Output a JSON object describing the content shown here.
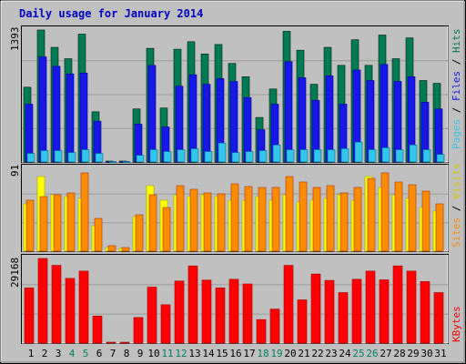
{
  "chart_data": [
    {
      "type": "bar",
      "title": "Daily usage for January 2014",
      "categories": [
        "1",
        "2",
        "3",
        "4",
        "5",
        "6",
        "7",
        "8",
        "9",
        "10",
        "11",
        "12",
        "13",
        "14",
        "15",
        "16",
        "17",
        "18",
        "19",
        "20",
        "21",
        "22",
        "23",
        "24",
        "25",
        "26",
        "27",
        "28",
        "29",
        "30",
        "31"
      ],
      "weekend_days": [
        "4",
        "5",
        "11",
        "12",
        "18",
        "19",
        "25",
        "26"
      ],
      "panel": "top",
      "ymax_label": "1393",
      "ylim": [
        0,
        1393
      ],
      "legend": [
        "Pages",
        "Files",
        "Hits"
      ],
      "series": [
        {
          "name": "Hits",
          "color": "#007a55",
          "values": [
            790,
            1393,
            1210,
            1090,
            1350,
            530,
            10,
            10,
            560,
            1200,
            570,
            1190,
            1270,
            1140,
            1240,
            1040,
            900,
            470,
            770,
            1380,
            1180,
            820,
            1210,
            1020,
            1290,
            1020,
            1340,
            1090,
            1310,
            860,
            830
          ]
        },
        {
          "name": "Files",
          "color": "#1717e8",
          "values": [
            610,
            1110,
            1010,
            930,
            940,
            430,
            5,
            5,
            400,
            1020,
            370,
            800,
            920,
            820,
            880,
            850,
            680,
            340,
            610,
            1060,
            890,
            650,
            910,
            610,
            970,
            860,
            1030,
            850,
            900,
            630,
            560
          ]
        },
        {
          "name": "Pages",
          "color": "#33c6ea",
          "values": [
            90,
            120,
            120,
            100,
            130,
            90,
            5,
            5,
            70,
            130,
            110,
            130,
            140,
            110,
            200,
            100,
            110,
            120,
            180,
            130,
            130,
            130,
            130,
            140,
            210,
            130,
            150,
            130,
            180,
            130,
            80
          ]
        }
      ]
    },
    {
      "type": "bar",
      "panel": "middle",
      "ymax_label": "91",
      "ylim": [
        0,
        91
      ],
      "legend": [
        "Sites",
        "Visits"
      ],
      "series": [
        {
          "name": "Visits",
          "color": "#ffff00",
          "values": [
            52,
            82,
            62,
            60,
            58,
            28,
            4,
            3,
            38,
            72,
            56,
            62,
            60,
            62,
            60,
            56,
            56,
            60,
            56,
            62,
            54,
            56,
            58,
            62,
            56,
            82,
            70,
            62,
            58,
            48,
            44
          ]
        },
        {
          "name": "Sites",
          "color": "#ff8c00",
          "values": [
            56,
            60,
            62,
            64,
            86,
            36,
            6,
            4,
            40,
            62,
            48,
            72,
            68,
            64,
            63,
            74,
            71,
            70,
            70,
            82,
            76,
            70,
            72,
            64,
            70,
            80,
            86,
            76,
            73,
            66,
            52
          ]
        }
      ]
    },
    {
      "type": "bar",
      "panel": "bottom",
      "ymax_label": "29168",
      "ylim": [
        0,
        29168
      ],
      "legend": [
        "KBytes"
      ],
      "series": [
        {
          "name": "KBytes",
          "color": "#ff0000",
          "values": [
            19000,
            29168,
            26800,
            22300,
            24800,
            9300,
            300,
            300,
            8800,
            19300,
            13200,
            21400,
            26600,
            21700,
            19000,
            22000,
            20400,
            8100,
            11700,
            26800,
            14900,
            23800,
            21600,
            17400,
            22000,
            24800,
            21800,
            26600,
            24800,
            21200,
            17400
          ]
        }
      ]
    }
  ]
}
